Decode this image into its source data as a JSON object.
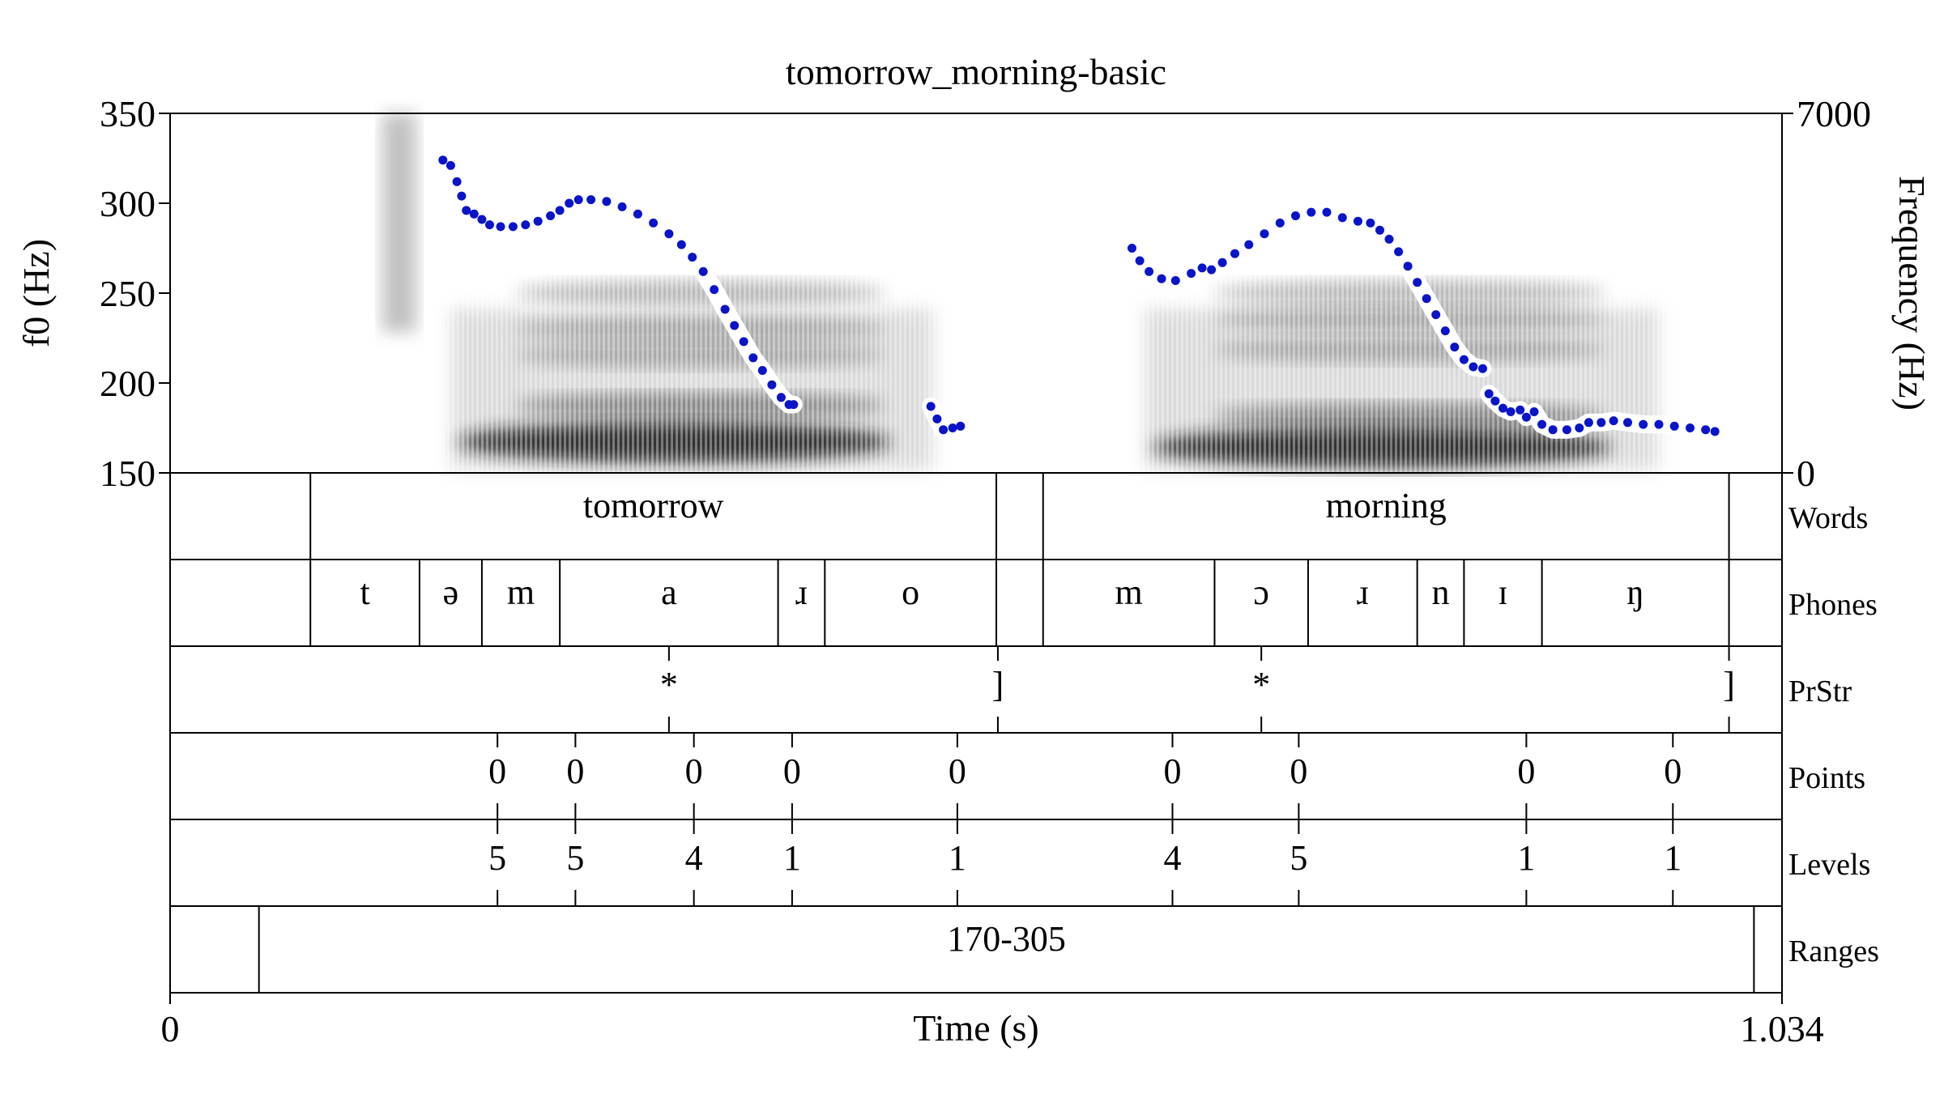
{
  "chart_data": {
    "type": "line",
    "title": "tomorrow_morning-basic",
    "xlabel": "Time (s)",
    "ylabel": "f0 (Hz)",
    "ylabel_right": "Frequency (Hz)",
    "xlim": [
      0,
      1.034
    ],
    "ylim": [
      150,
      350
    ],
    "ylim_right": [
      0,
      7000
    ],
    "x_ticks": [
      "0",
      "1.034"
    ],
    "y_ticks": [
      150,
      200,
      250,
      300,
      350
    ],
    "y_ticks_right": [
      "0",
      "7000"
    ],
    "pitch_color": "#0a14c8",
    "series": [
      {
        "values": [
          [
            0.175,
            324
          ],
          [
            0.18,
            321
          ],
          [
            0.184,
            312
          ],
          [
            0.187,
            304
          ],
          [
            0.19,
            296
          ],
          [
            0.195,
            294
          ],
          [
            0.2,
            291
          ],
          [
            0.205,
            288
          ],
          [
            0.212,
            287
          ],
          [
            0.22,
            287
          ],
          [
            0.228,
            288
          ],
          [
            0.236,
            290
          ],
          [
            0.244,
            293
          ],
          [
            0.25,
            296
          ],
          [
            0.256,
            300
          ],
          [
            0.262,
            302
          ],
          [
            0.27,
            302
          ],
          [
            0.28,
            301
          ],
          [
            0.29,
            298
          ],
          [
            0.3,
            294
          ],
          [
            0.31,
            289
          ],
          [
            0.32,
            283
          ],
          [
            0.328,
            277
          ],
          [
            0.335,
            270
          ],
          [
            0.342,
            262
          ],
          [
            0.349,
            252
          ],
          [
            0.356,
            241
          ],
          [
            0.362,
            232
          ],
          [
            0.368,
            223
          ],
          [
            0.374,
            214
          ],
          [
            0.38,
            207
          ],
          [
            0.386,
            199
          ],
          [
            0.392,
            192
          ],
          [
            0.397,
            188
          ],
          [
            0.4,
            188
          ]
        ]
      },
      {
        "values": [
          [
            0.488,
            187
          ],
          [
            0.492,
            180
          ],
          [
            0.496,
            174
          ],
          [
            0.502,
            175
          ],
          [
            0.507,
            176
          ]
        ]
      },
      {
        "values": [
          [
            0.617,
            275
          ],
          [
            0.622,
            268
          ],
          [
            0.628,
            262
          ],
          [
            0.636,
            258
          ],
          [
            0.645,
            257
          ],
          [
            0.655,
            261
          ],
          [
            0.662,
            264
          ],
          [
            0.668,
            263
          ],
          [
            0.675,
            267
          ],
          [
            0.683,
            272
          ],
          [
            0.692,
            277
          ],
          [
            0.702,
            283
          ],
          [
            0.712,
            289
          ],
          [
            0.722,
            293
          ],
          [
            0.732,
            295
          ],
          [
            0.742,
            295
          ],
          [
            0.752,
            292
          ],
          [
            0.762,
            290
          ],
          [
            0.77,
            289
          ],
          [
            0.776,
            285
          ],
          [
            0.782,
            280
          ],
          [
            0.788,
            273
          ],
          [
            0.794,
            265
          ],
          [
            0.8,
            256
          ],
          [
            0.806,
            247
          ],
          [
            0.812,
            238
          ],
          [
            0.818,
            229
          ],
          [
            0.824,
            220
          ],
          [
            0.83,
            213
          ],
          [
            0.836,
            209
          ],
          [
            0.842,
            208
          ]
        ]
      },
      {
        "values": [
          [
            0.846,
            194
          ],
          [
            0.85,
            190
          ],
          [
            0.855,
            186
          ],
          [
            0.86,
            184
          ],
          [
            0.866,
            185
          ],
          [
            0.87,
            181
          ],
          [
            0.875,
            184
          ],
          [
            0.88,
            177
          ],
          [
            0.887,
            174
          ],
          [
            0.896,
            174
          ],
          [
            0.904,
            175
          ],
          [
            0.91,
            178
          ],
          [
            0.918,
            178
          ],
          [
            0.926,
            179
          ],
          [
            0.935,
            178
          ],
          [
            0.945,
            177
          ],
          [
            0.955,
            177
          ],
          [
            0.965,
            176
          ],
          [
            0.975,
            175
          ],
          [
            0.985,
            174
          ],
          [
            0.991,
            173
          ]
        ]
      }
    ],
    "spectrogram": {
      "voiced_regions": [
        {
          "from": 0.175,
          "to": 0.505,
          "formants_hz": [
            600,
            1300,
            2300,
            2800,
            3500
          ]
        },
        {
          "from": 0.62,
          "to": 0.97,
          "formants_hz": [
            500,
            1100,
            2400,
            3000,
            3500
          ]
        }
      ],
      "noise_regions": [
        {
          "from": 0.136,
          "to": 0.158
        }
      ]
    },
    "tiers": [
      {
        "name": "Words",
        "kind": "interval",
        "boundaries": [
          0.09,
          0.53,
          0.56,
          1.0
        ],
        "intervals": [
          {
            "from": 0.09,
            "to": 0.53,
            "label": "tomorrow"
          },
          {
            "from": 0.56,
            "to": 1.0,
            "label": "morning"
          }
        ]
      },
      {
        "name": "Phones",
        "kind": "interval",
        "boundaries": [
          0.09,
          0.16,
          0.2,
          0.25,
          0.39,
          0.42,
          0.53,
          0.56,
          0.67,
          0.73,
          0.8,
          0.83,
          0.88,
          1.0
        ],
        "intervals": [
          {
            "from": 0.09,
            "to": 0.16,
            "label": "t"
          },
          {
            "from": 0.16,
            "to": 0.2,
            "label": "ə"
          },
          {
            "from": 0.2,
            "to": 0.25,
            "label": "m"
          },
          {
            "from": 0.25,
            "to": 0.39,
            "label": "a"
          },
          {
            "from": 0.39,
            "to": 0.42,
            "label": "ɹ"
          },
          {
            "from": 0.42,
            "to": 0.53,
            "label": "o"
          },
          {
            "from": 0.56,
            "to": 0.67,
            "label": "m"
          },
          {
            "from": 0.67,
            "to": 0.73,
            "label": "ɔ"
          },
          {
            "from": 0.73,
            "to": 0.8,
            "label": "ɹ"
          },
          {
            "from": 0.8,
            "to": 0.83,
            "label": "n"
          },
          {
            "from": 0.83,
            "to": 0.88,
            "label": "ɪ"
          },
          {
            "from": 0.88,
            "to": 1.0,
            "label": "ŋ"
          }
        ]
      },
      {
        "name": "PrStr",
        "kind": "point",
        "points": [
          {
            "t": 0.32,
            "label": "*"
          },
          {
            "t": 0.531,
            "label": "]"
          },
          {
            "t": 0.7,
            "label": "*"
          },
          {
            "t": 1.0,
            "label": "]"
          }
        ]
      },
      {
        "name": "Points",
        "kind": "point",
        "points": [
          {
            "t": 0.21,
            "label": "0"
          },
          {
            "t": 0.26,
            "label": "0"
          },
          {
            "t": 0.336,
            "label": "0"
          },
          {
            "t": 0.399,
            "label": "0"
          },
          {
            "t": 0.505,
            "label": "0"
          },
          {
            "t": 0.643,
            "label": "0"
          },
          {
            "t": 0.724,
            "label": "0"
          },
          {
            "t": 0.87,
            "label": "0"
          },
          {
            "t": 0.964,
            "label": "0"
          }
        ]
      },
      {
        "name": "Levels",
        "kind": "point",
        "points": [
          {
            "t": 0.21,
            "label": "5"
          },
          {
            "t": 0.26,
            "label": "5"
          },
          {
            "t": 0.336,
            "label": "4"
          },
          {
            "t": 0.399,
            "label": "1"
          },
          {
            "t": 0.505,
            "label": "1"
          },
          {
            "t": 0.643,
            "label": "4"
          },
          {
            "t": 0.724,
            "label": "5"
          },
          {
            "t": 0.87,
            "label": "1"
          },
          {
            "t": 0.964,
            "label": "1"
          }
        ]
      },
      {
        "name": "Ranges",
        "kind": "interval",
        "boundaries": [
          0.057,
          1.016
        ],
        "intervals": [
          {
            "from": 0.057,
            "to": 1.016,
            "label": "170-305"
          }
        ]
      }
    ]
  }
}
